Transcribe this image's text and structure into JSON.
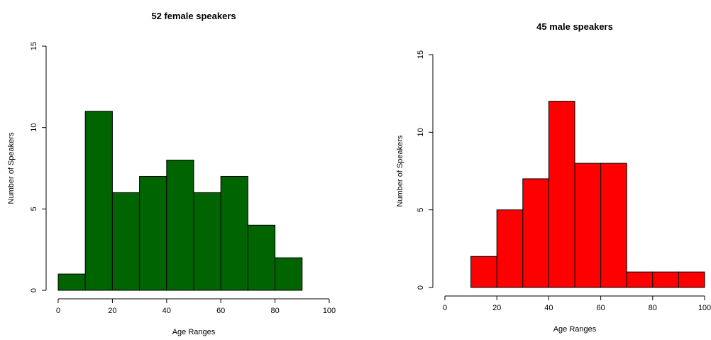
{
  "chart_data": [
    {
      "type": "bar",
      "subtype": "histogram",
      "title": "52 female speakers",
      "xlabel": "Age Ranges",
      "ylabel": "Number of Speakers",
      "bins": [
        [
          0,
          10
        ],
        [
          10,
          20
        ],
        [
          20,
          30
        ],
        [
          30,
          40
        ],
        [
          40,
          50
        ],
        [
          50,
          60
        ],
        [
          60,
          70
        ],
        [
          70,
          80
        ],
        [
          80,
          90
        ]
      ],
      "values": [
        1,
        11,
        6,
        7,
        8,
        6,
        7,
        4,
        2
      ],
      "xlim": [
        0,
        100
      ],
      "ylim": [
        0,
        15
      ],
      "xticks": [
        0,
        20,
        40,
        60,
        80,
        100
      ],
      "yticks": [
        0,
        5,
        10,
        15
      ],
      "color": "#006400",
      "grid": false
    },
    {
      "type": "bar",
      "subtype": "histogram",
      "title": "45 male speakers",
      "xlabel": "Age Ranges",
      "ylabel": "Number of Speakers",
      "bins": [
        [
          10,
          20
        ],
        [
          20,
          30
        ],
        [
          30,
          40
        ],
        [
          40,
          50
        ],
        [
          50,
          60
        ],
        [
          60,
          70
        ],
        [
          70,
          80
        ],
        [
          80,
          90
        ],
        [
          90,
          100
        ]
      ],
      "values": [
        2,
        5,
        7,
        12,
        8,
        8,
        1,
        1,
        1
      ],
      "xlim": [
        0,
        100
      ],
      "ylim": [
        0,
        15
      ],
      "xticks": [
        0,
        20,
        40,
        60,
        80,
        100
      ],
      "yticks": [
        0,
        5,
        10,
        15
      ],
      "color": "#ff0000",
      "grid": false
    }
  ]
}
